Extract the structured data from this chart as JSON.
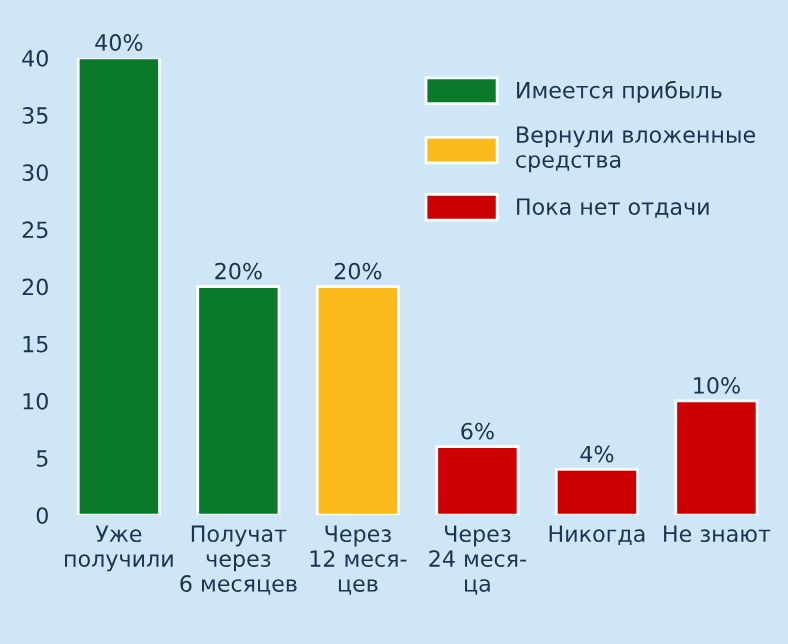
{
  "chart_data": {
    "type": "bar",
    "categories": [
      "Уже\nполучили",
      "Получат\nчерез\n6 месяцев",
      "Через\n12 меся-\nцев",
      "Через\n24 меся-\nца",
      "Никогда",
      "Не знают"
    ],
    "series": [
      {
        "name": "Имеется прибыль",
        "color": "#0a7a2a",
        "values": [
          40,
          20,
          null,
          null,
          null,
          null
        ],
        "value_labels": [
          "40%",
          "20%",
          null,
          null,
          null,
          null
        ]
      },
      {
        "name": "Вернули вложенные\nсредства",
        "color": "#fbb91a",
        "values": [
          null,
          null,
          20,
          null,
          null,
          null
        ],
        "value_labels": [
          null,
          null,
          "20%",
          null,
          null,
          null
        ]
      },
      {
        "name": "Пока нет отдачи",
        "color": "#cc0000",
        "values": [
          null,
          null,
          null,
          6,
          4,
          10
        ],
        "value_labels": [
          null,
          null,
          null,
          "6%",
          "4%",
          "10%"
        ]
      }
    ],
    "ylim": [
      0,
      40
    ],
    "yticks": [
      0,
      5,
      10,
      15,
      20,
      25,
      30,
      35,
      40
    ],
    "grid": false,
    "legend": "top right"
  }
}
